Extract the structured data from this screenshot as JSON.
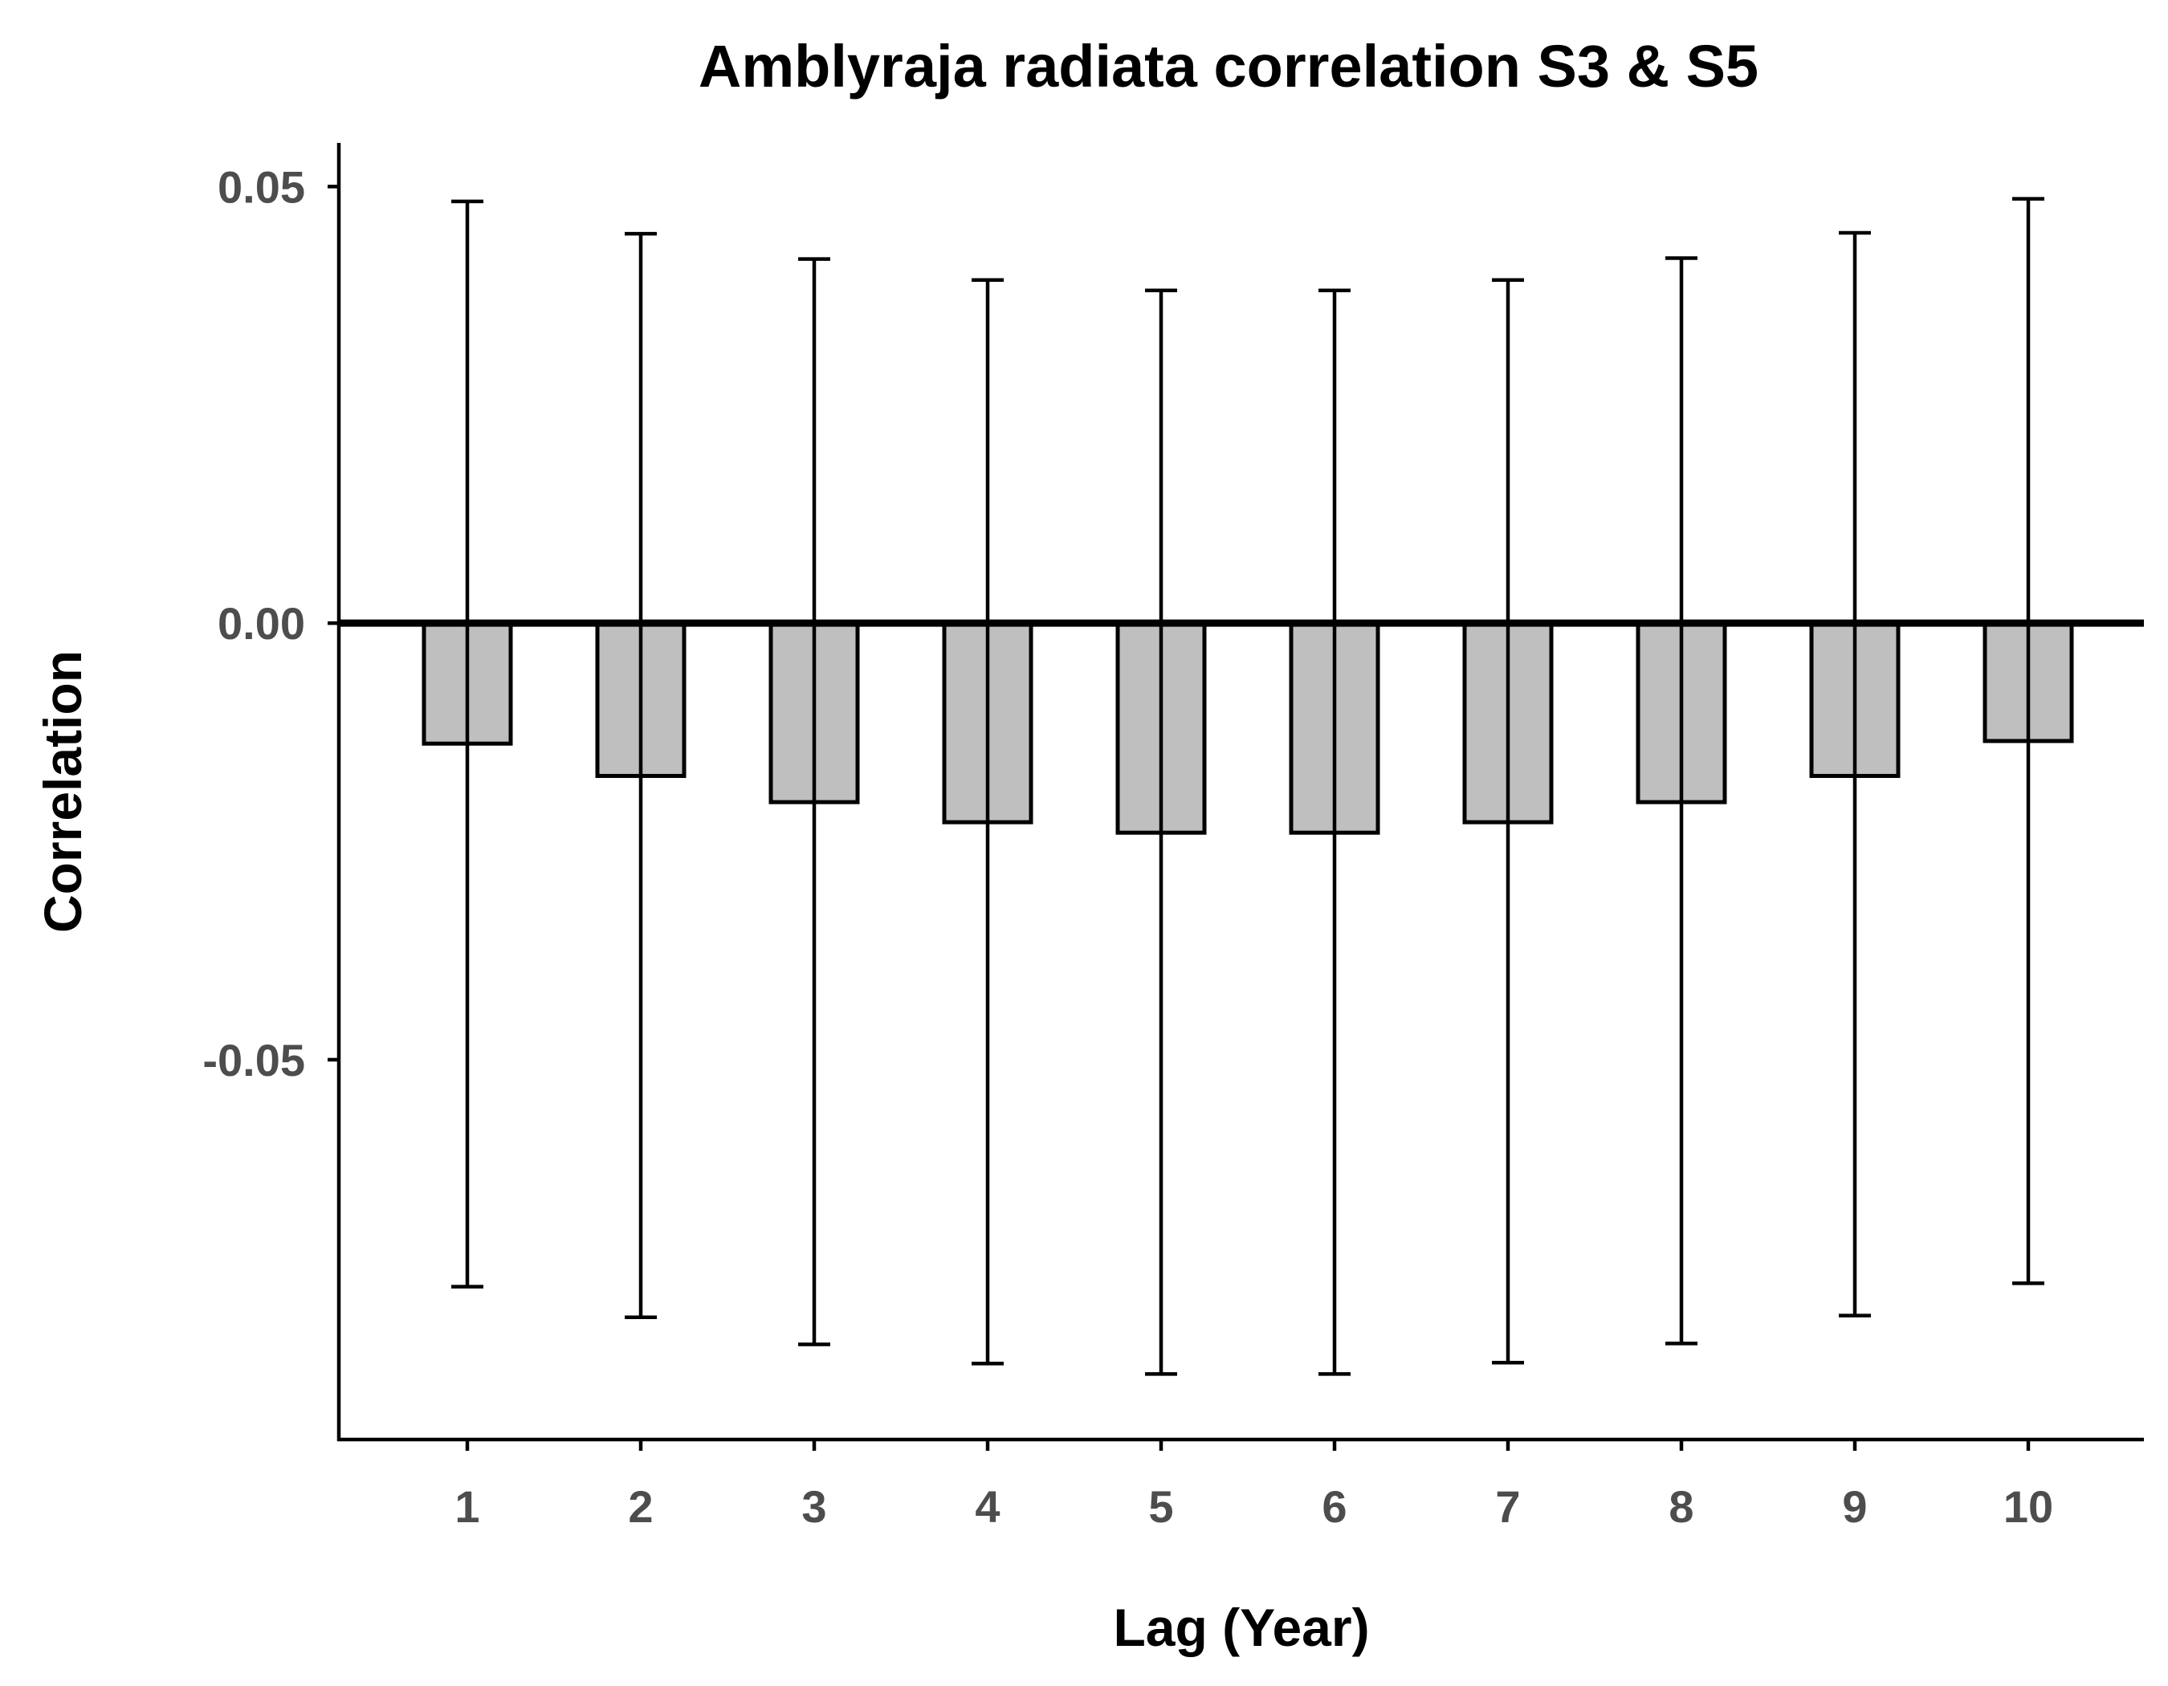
{
  "chart_data": {
    "type": "bar",
    "title": "Amblyraja radiata correlation S3 & S5",
    "xlabel": "Lag (Year)",
    "ylabel": "Correlation",
    "categories": [
      "1",
      "2",
      "3",
      "4",
      "5",
      "6",
      "7",
      "8",
      "9",
      "10"
    ],
    "values": [
      -0.0138,
      -0.0175,
      -0.0205,
      -0.0228,
      -0.024,
      -0.024,
      -0.0228,
      -0.0205,
      -0.0175,
      -0.0135
    ],
    "error_upper": [
      0.0483,
      0.0446,
      0.0417,
      0.0393,
      0.0381,
      0.0381,
      0.0393,
      0.0418,
      0.0447,
      0.0486
    ],
    "error_lower": [
      -0.076,
      -0.0795,
      -0.0826,
      -0.0848,
      -0.086,
      -0.086,
      -0.0847,
      -0.0825,
      -0.0793,
      -0.0756
    ],
    "ylim": [
      -0.0935,
      0.055
    ],
    "yticks": [
      -0.05,
      0.0,
      0.05
    ],
    "ytick_labels": [
      "-0.05",
      "0.00",
      "0.05"
    ],
    "bar_fill": "#bfbfbf",
    "bar_stroke": "#000000",
    "zero_line": true,
    "grid": false,
    "legend": "none"
  }
}
